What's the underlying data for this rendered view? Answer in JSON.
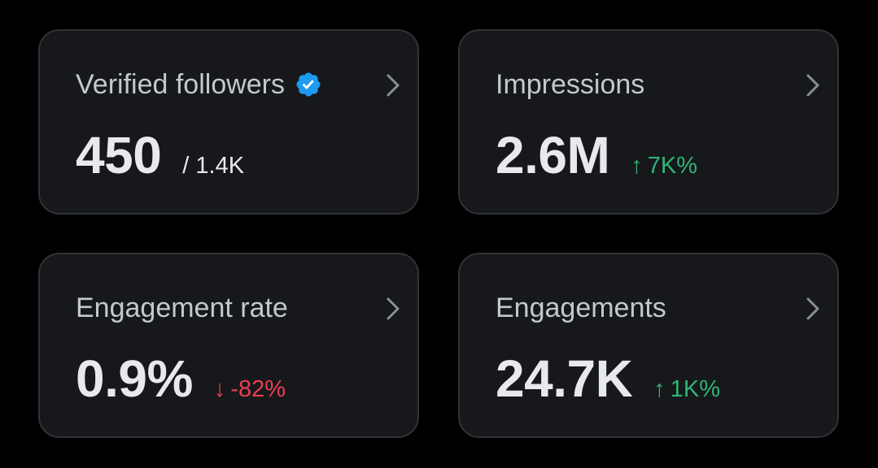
{
  "cards": [
    {
      "title": "Verified followers",
      "value": "450",
      "sub": "/ 1.4K",
      "verified_badge": true
    },
    {
      "title": "Impressions",
      "value": "2.6M",
      "delta": {
        "arrow": "↑",
        "text": "7K%",
        "direction": "up"
      }
    },
    {
      "title": "Engagement rate",
      "value": "0.9%",
      "delta": {
        "arrow": "↓",
        "text": "-82%",
        "direction": "down"
      }
    },
    {
      "title": "Engagements",
      "value": "24.7K",
      "delta": {
        "arrow": "↑",
        "text": "1K%",
        "direction": "up"
      }
    }
  ],
  "colors": {
    "background": "#000000",
    "card": "#16181c",
    "border": "#2f3336",
    "positive": "#2fb574",
    "negative": "#e8404f",
    "verified": "#1d9bf0"
  },
  "icons": {
    "chevron": "chevron-right-icon",
    "verified": "verified-badge-icon",
    "up": "arrow-up-icon",
    "down": "arrow-down-icon"
  }
}
